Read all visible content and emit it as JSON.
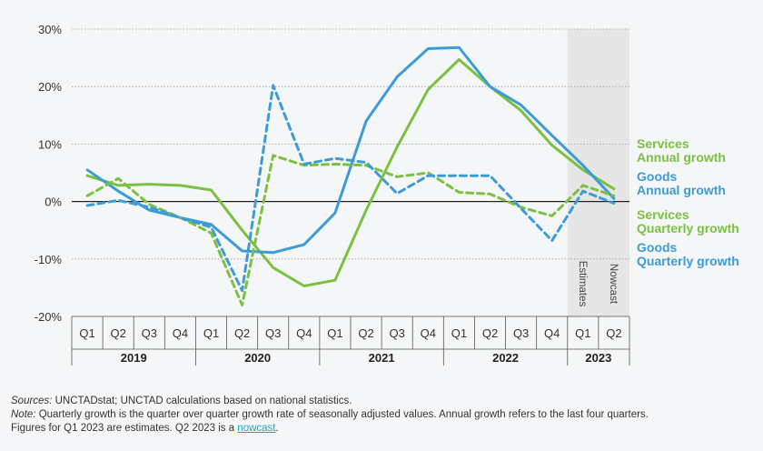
{
  "chart_data": {
    "type": "line",
    "y_ticks": [
      "30%",
      "20%",
      "10%",
      "0%",
      "-10%",
      "-20%"
    ],
    "y_tick_values": [
      30,
      20,
      10,
      0,
      -10,
      -20
    ],
    "ylim": [
      -20,
      30
    ],
    "quarters": [
      "Q1",
      "Q2",
      "Q3",
      "Q4",
      "Q1",
      "Q2",
      "Q3",
      "Q4",
      "Q1",
      "Q2",
      "Q3",
      "Q4",
      "Q1",
      "Q2",
      "Q3",
      "Q4",
      "Q1",
      "Q2"
    ],
    "years": [
      "2019",
      "2020",
      "2021",
      "2022",
      "2023"
    ],
    "shaded_labels": [
      "Estimates",
      "Nowcast"
    ],
    "grid": "horizontal",
    "colors": {
      "services": "#7ac143",
      "goods": "#3d9bd6",
      "shade": "#e6e6e6"
    },
    "series": [
      {
        "name": "Services Annual growth",
        "style": "solid",
        "color": "#7ac143",
        "values": [
          4.5,
          2.8,
          3.0,
          2.8,
          2.0,
          -5.0,
          -11.5,
          -14.7,
          -13.7,
          -1.5,
          9.5,
          19.5,
          24.7,
          20.0,
          15.8,
          9.8,
          5.5,
          2.2
        ]
      },
      {
        "name": "Goods Annual growth",
        "style": "solid",
        "color": "#3d9bd6",
        "values": [
          5.5,
          1.8,
          -1.5,
          -2.8,
          -4.0,
          -8.6,
          -8.9,
          -7.5,
          -2.0,
          14.0,
          21.7,
          26.6,
          26.8,
          20.0,
          16.8,
          11.5,
          6.3,
          0.5
        ]
      },
      {
        "name": "Services Quarterly growth",
        "style": "dashed",
        "color": "#7ac143",
        "values": [
          1.0,
          4.0,
          -0.5,
          -2.8,
          -5.5,
          -18.0,
          8.0,
          6.3,
          6.5,
          6.3,
          4.3,
          5.0,
          1.6,
          1.3,
          -1.0,
          -2.5,
          2.8,
          1.0
        ]
      },
      {
        "name": "Goods Quarterly growth",
        "style": "dashed",
        "color": "#3d9bd6",
        "values": [
          -0.7,
          0.2,
          -1.0,
          -2.8,
          -4.5,
          -15.5,
          20.2,
          6.5,
          7.5,
          6.8,
          1.4,
          4.5,
          4.5,
          4.5,
          -1.2,
          -6.8,
          1.8,
          -0.3
        ]
      }
    ],
    "legend": [
      {
        "line1": "Services",
        "line2": "Annual growth",
        "color": "#7ac143"
      },
      {
        "line1": "Goods",
        "line2": "Annual growth",
        "color": "#3d9bd6"
      },
      {
        "line1": "Services",
        "line2": "Quarterly growth",
        "color": "#7ac143"
      },
      {
        "line1": "Goods",
        "line2": "Quarterly growth",
        "color": "#3d9bd6"
      }
    ]
  },
  "notes": {
    "sources_label": "Sources:",
    "sources_text": " UNCTADstat; UNCTAD calculations based on national statistics.",
    "note_label": "Note:",
    "note_text": " Quarterly growth is the quarter over quarter growth rate of seasonally adjusted values. Annual growth refers to the last four quarters.",
    "figures_text": "Figures for Q1 2023 are estimates. Q2 2023 is a ",
    "nowcast_link": "nowcast",
    "period": "."
  }
}
